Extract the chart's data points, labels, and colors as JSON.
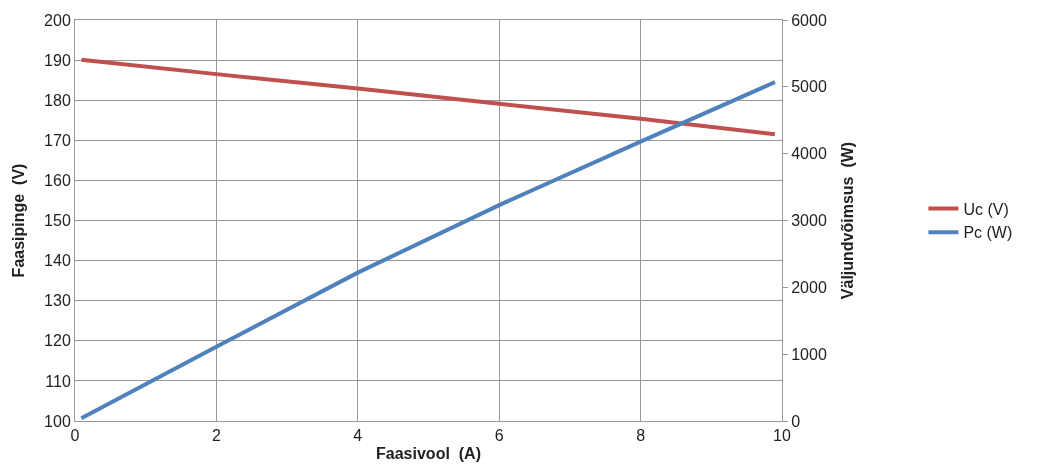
{
  "chart_data": {
    "type": "line",
    "xlabel": "Faasivool  (A)",
    "ylabel": "Faasipinge  (V)",
    "y2label": "Väljundvõimsus  (W)",
    "x": [
      0.09,
      2,
      4,
      6,
      8,
      9.9
    ],
    "series": [
      {
        "name": "Uc (V)",
        "color": "#c0504d",
        "values": [
          190.1,
          186.5,
          182.9,
          179.1,
          175.4,
          171.5
        ]
      },
      {
        "name": "Pc (W)",
        "color": "#4f81bd",
        "axis": "y2",
        "values": [
          40,
          1110,
          2220,
          3230,
          4180,
          5070
        ]
      }
    ],
    "xlim": [
      0,
      10
    ],
    "xticks": [
      0,
      2,
      4,
      6,
      8,
      10
    ],
    "ylim": [
      100,
      200
    ],
    "yticks": [
      100,
      110,
      120,
      130,
      140,
      150,
      160,
      170,
      180,
      190,
      200
    ],
    "y2lim": [
      0,
      6000
    ],
    "y2ticks": [
      0,
      1000,
      2000,
      3000,
      4000,
      5000,
      6000
    ],
    "grid": true,
    "legend": "right",
    "marker": "none",
    "line_style": "solid"
  }
}
